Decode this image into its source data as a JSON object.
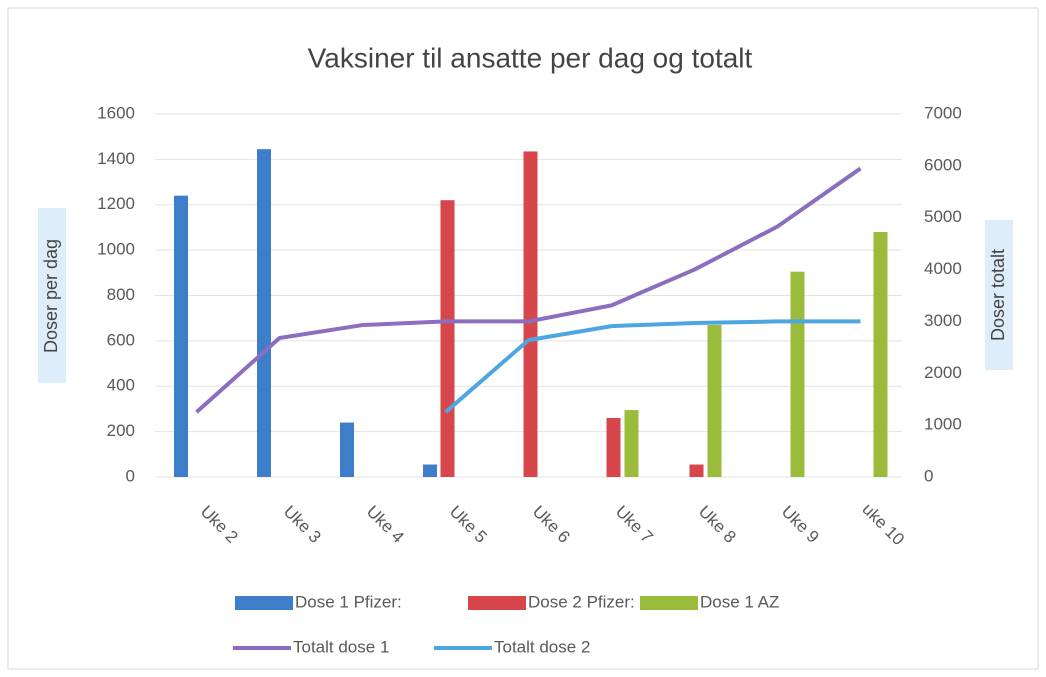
{
  "chart_data": {
    "type": "bar",
    "title": "Vaksiner til ansatte per dag og totalt",
    "y_label": "Doser per dag",
    "y2_label": "Doser totalt",
    "categories": [
      "Uke 2",
      "Uke 3",
      "Uke 4",
      "Uke 5",
      "Uke 6",
      "Uke 7",
      "Uke 8",
      "Uke 9",
      "uke 10"
    ],
    "series": [
      {
        "name": "Dose 1 Pfizer:",
        "type": "bar",
        "color": "#3d7dca",
        "values": [
          1240,
          1445,
          240,
          55,
          null,
          null,
          null,
          null,
          null
        ]
      },
      {
        "name": "Dose 2 Pfizer:",
        "type": "bar",
        "color": "#d6464b",
        "values": [
          null,
          null,
          null,
          1220,
          1435,
          260,
          55,
          null,
          null
        ]
      },
      {
        "name": "Dose 1 AZ",
        "type": "bar",
        "color": "#9bbb3c",
        "values": [
          null,
          null,
          null,
          null,
          null,
          295,
          670,
          905,
          1080
        ]
      },
      {
        "name": "Totalt dose 1",
        "type": "line",
        "axis": "y2",
        "color": "#8b6fbe",
        "values": [
          1250,
          2680,
          2930,
          3000,
          3000,
          3310,
          4000,
          4830,
          5950
        ]
      },
      {
        "name": "Totalt dose 2",
        "type": "line",
        "axis": "y2",
        "color": "#4da6e0",
        "values": [
          null,
          null,
          null,
          1250,
          2640,
          2910,
          2970,
          3000,
          3000
        ]
      }
    ],
    "ylim": [
      0,
      1600
    ],
    "yticks": [
      0,
      200,
      400,
      600,
      800,
      1000,
      1200,
      1400,
      1600
    ],
    "y2lim": [
      0,
      7000
    ],
    "y2ticks": [
      0,
      1000,
      2000,
      3000,
      4000,
      5000,
      6000,
      7000
    ],
    "grid": true,
    "legend": "bottom"
  }
}
